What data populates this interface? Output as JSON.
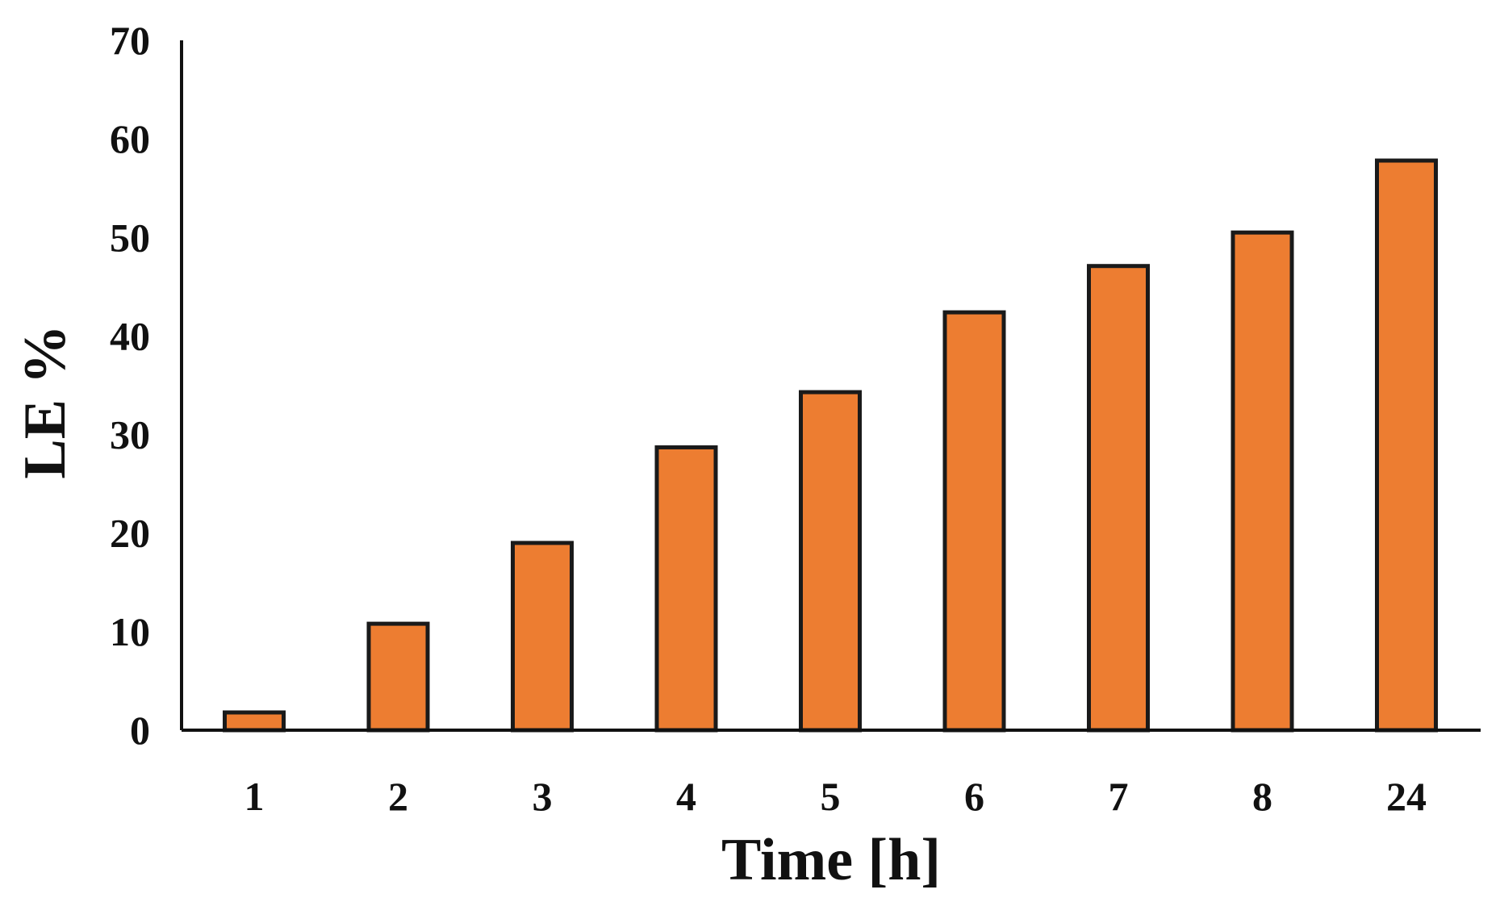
{
  "chart_data": {
    "type": "bar",
    "title": "",
    "xlabel": "Time [h]",
    "ylabel": "LE %",
    "categories": [
      "1",
      "2",
      "3",
      "4",
      "5",
      "6",
      "7",
      "8",
      "24"
    ],
    "values": [
      1.8,
      10.8,
      19.0,
      28.7,
      34.3,
      42.4,
      47.1,
      50.5,
      57.8
    ],
    "ylim": [
      0,
      70
    ],
    "yticks": [
      0,
      10,
      20,
      30,
      40,
      50,
      60,
      70
    ],
    "grid": false,
    "legend": "none",
    "bar_color": "#ED7D31",
    "bar_edge_color": "#1a1a1a"
  }
}
